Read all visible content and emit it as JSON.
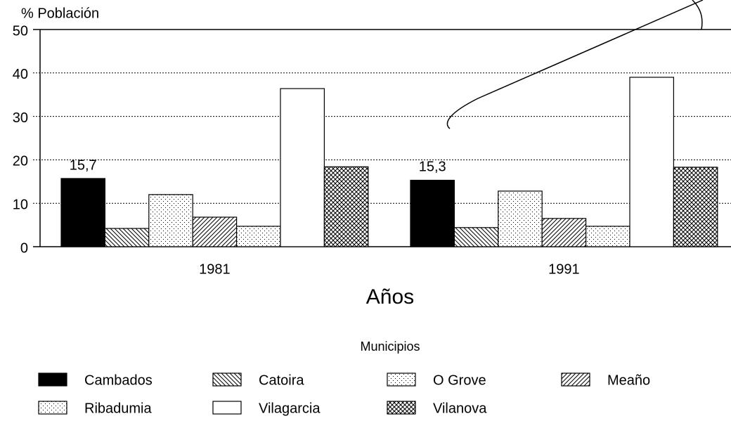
{
  "chart_data": {
    "type": "bar",
    "y_label": "% Población",
    "x_label": "Años",
    "legend_title": "Municipios",
    "categories": [
      "1981",
      "1991"
    ],
    "ylim": [
      0,
      50
    ],
    "yticks": [
      0,
      10,
      20,
      30,
      40,
      50
    ],
    "grid": true,
    "series": [
      {
        "name": "Cambados",
        "color": "#000000",
        "pattern": "solid",
        "values": [
          15.7,
          15.3
        ],
        "value_labels": [
          "15,7",
          "15,3"
        ]
      },
      {
        "name": "Catoira",
        "color": "#000000",
        "pattern": "hatch-left",
        "values": [
          4.2,
          4.4
        ]
      },
      {
        "name": "O Grove",
        "color": "#000000",
        "pattern": "dots",
        "values": [
          12.0,
          12.8
        ]
      },
      {
        "name": "Meaño",
        "color": "#000000",
        "pattern": "hatch-right",
        "values": [
          6.8,
          6.5
        ]
      },
      {
        "name": "Ribadumia",
        "color": "#000000",
        "pattern": "dots",
        "values": [
          4.7,
          4.7
        ]
      },
      {
        "name": "Vilagarcia",
        "color": "#000000",
        "pattern": "none",
        "values": [
          36.4,
          39.0
        ]
      },
      {
        "name": "Vilanova",
        "color": "#000000",
        "pattern": "crosshatch",
        "values": [
          18.4,
          18.3
        ]
      }
    ]
  }
}
